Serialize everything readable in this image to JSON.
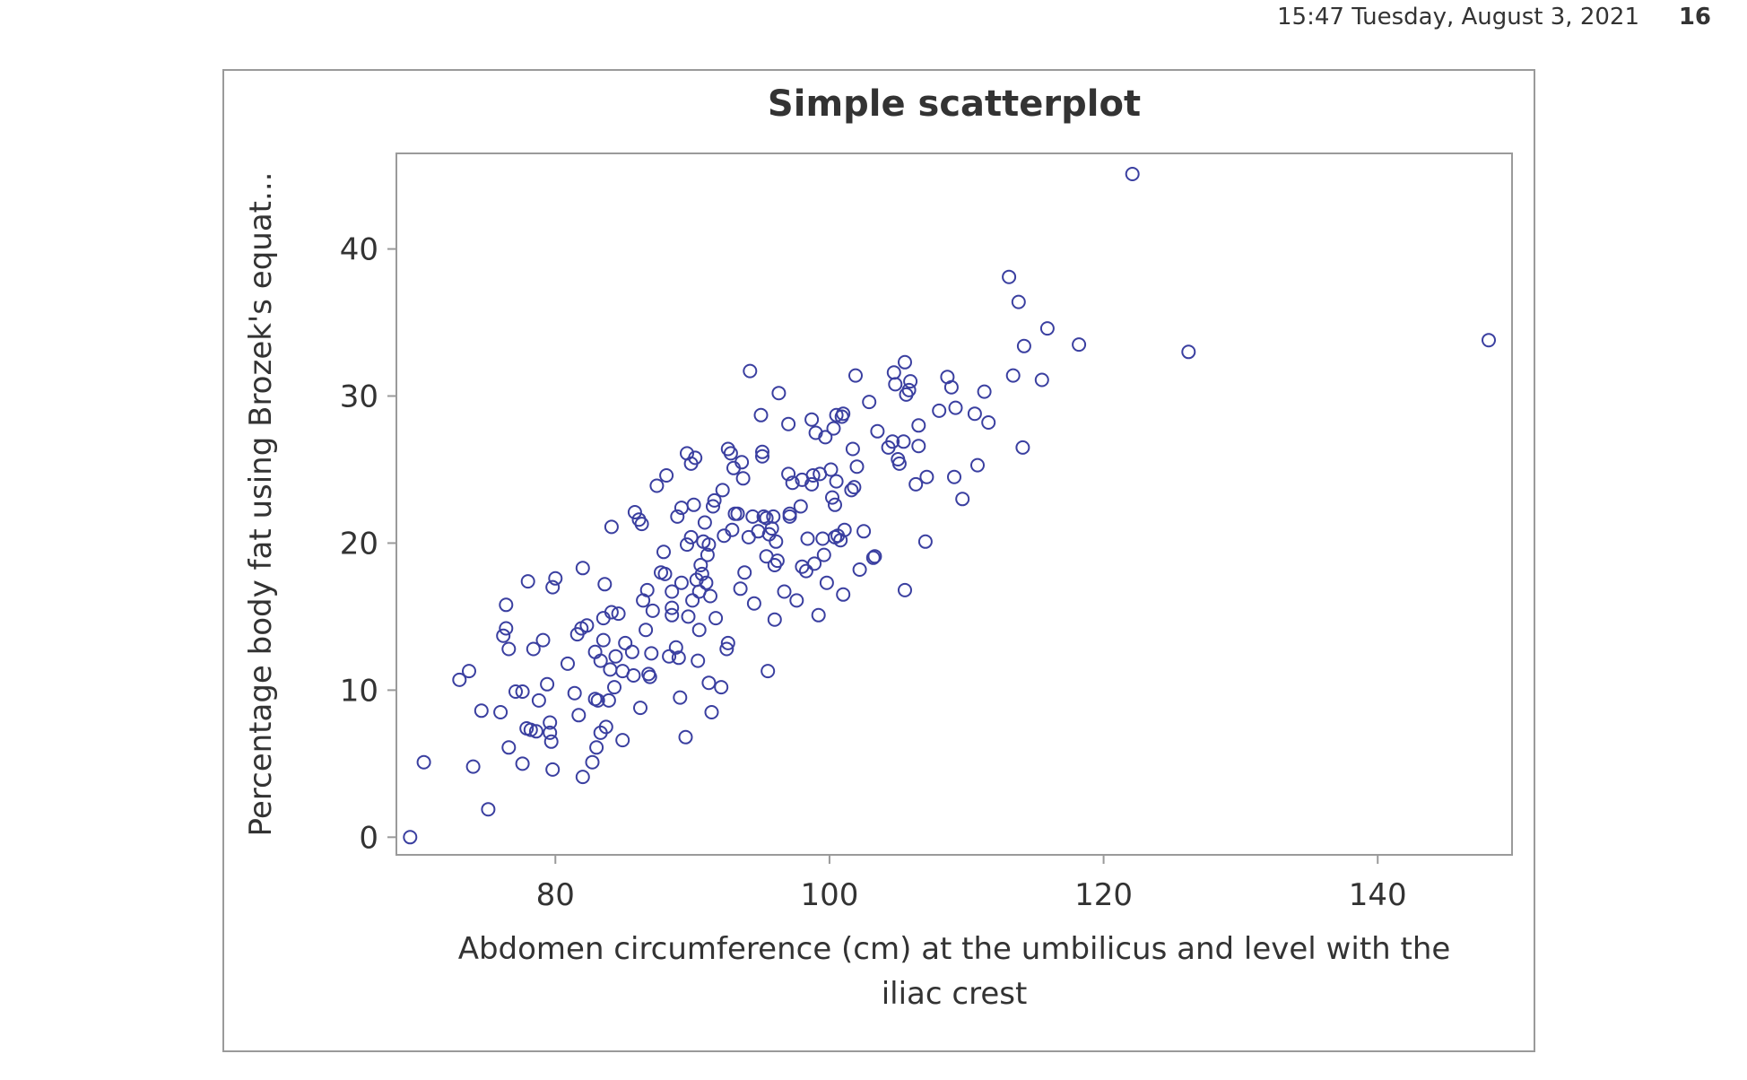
{
  "header": {
    "timestamp": "15:47 Tuesday, August 3, 2021",
    "page_number": "16"
  },
  "colors": {
    "marker": "#3a3fa0",
    "axis": "#9a9a9a",
    "text": "#333333"
  },
  "chart_data": {
    "type": "scatter",
    "title": "Simple scatterplot",
    "xlabel_lines": [
      "Abdomen circumference (cm) at the umbilicus and level with the",
      "iliac crest"
    ],
    "ylabel": "Percentage body fat using Brozek's equat...",
    "xlim": [
      68.4,
      149.8
    ],
    "ylim": [
      -1.2,
      46.5
    ],
    "xticks": [
      80,
      100,
      120,
      140
    ],
    "yticks": [
      0,
      10,
      20,
      30,
      40
    ],
    "grid": false,
    "marker": "open-circle",
    "points": [
      [
        69.4,
        0.0
      ],
      [
        70.4,
        5.1
      ],
      [
        73.0,
        10.7
      ],
      [
        73.7,
        11.3
      ],
      [
        74.0,
        4.8
      ],
      [
        74.6,
        8.6
      ],
      [
        75.1,
        1.9
      ],
      [
        76.0,
        8.5
      ],
      [
        76.2,
        13.7
      ],
      [
        76.4,
        14.2
      ],
      [
        76.4,
        15.8
      ],
      [
        76.6,
        12.8
      ],
      [
        76.6,
        6.1
      ],
      [
        77.1,
        9.9
      ],
      [
        77.6,
        9.9
      ],
      [
        77.6,
        5.0
      ],
      [
        77.9,
        7.4
      ],
      [
        78.0,
        17.4
      ],
      [
        78.2,
        7.3
      ],
      [
        78.4,
        12.8
      ],
      [
        78.6,
        7.2
      ],
      [
        78.8,
        9.3
      ],
      [
        79.1,
        13.4
      ],
      [
        79.4,
        10.4
      ],
      [
        79.6,
        7.8
      ],
      [
        79.6,
        7.1
      ],
      [
        79.7,
        6.5
      ],
      [
        79.8,
        4.6
      ],
      [
        79.8,
        17.0
      ],
      [
        80.0,
        17.6
      ],
      [
        80.9,
        11.8
      ],
      [
        81.4,
        9.8
      ],
      [
        81.6,
        13.8
      ],
      [
        81.7,
        8.3
      ],
      [
        81.9,
        14.2
      ],
      [
        82.0,
        4.1
      ],
      [
        82.0,
        18.3
      ],
      [
        82.3,
        14.4
      ],
      [
        82.7,
        5.1
      ],
      [
        82.9,
        9.4
      ],
      [
        82.9,
        12.6
      ],
      [
        83.0,
        6.1
      ],
      [
        83.1,
        9.3
      ],
      [
        83.3,
        7.1
      ],
      [
        83.3,
        12.0
      ],
      [
        83.5,
        14.9
      ],
      [
        83.5,
        13.4
      ],
      [
        83.6,
        17.2
      ],
      [
        83.7,
        7.5
      ],
      [
        83.9,
        9.3
      ],
      [
        84.0,
        11.4
      ],
      [
        84.1,
        15.3
      ],
      [
        84.1,
        21.1
      ],
      [
        84.3,
        10.2
      ],
      [
        84.4,
        12.3
      ],
      [
        84.6,
        15.2
      ],
      [
        84.9,
        6.6
      ],
      [
        84.9,
        11.3
      ],
      [
        85.1,
        13.2
      ],
      [
        85.6,
        12.6
      ],
      [
        85.7,
        11.0
      ],
      [
        85.8,
        22.1
      ],
      [
        86.1,
        21.6
      ],
      [
        86.2,
        8.8
      ],
      [
        86.3,
        21.3
      ],
      [
        86.4,
        16.1
      ],
      [
        86.6,
        14.1
      ],
      [
        86.7,
        16.8
      ],
      [
        86.8,
        11.1
      ],
      [
        86.9,
        10.9
      ],
      [
        87.0,
        12.5
      ],
      [
        87.1,
        15.4
      ],
      [
        87.4,
        23.9
      ],
      [
        87.7,
        18.0
      ],
      [
        87.9,
        19.4
      ],
      [
        88.0,
        17.9
      ],
      [
        88.1,
        24.6
      ],
      [
        88.3,
        12.3
      ],
      [
        88.5,
        15.6
      ],
      [
        88.5,
        16.7
      ],
      [
        88.5,
        15.1
      ],
      [
        88.8,
        12.9
      ],
      [
        88.9,
        21.8
      ],
      [
        89.0,
        12.2
      ],
      [
        89.1,
        9.5
      ],
      [
        89.2,
        22.4
      ],
      [
        89.2,
        17.3
      ],
      [
        89.5,
        6.8
      ],
      [
        89.6,
        19.9
      ],
      [
        89.6,
        26.1
      ],
      [
        89.7,
        15.0
      ],
      [
        89.9,
        25.4
      ],
      [
        89.9,
        20.4
      ],
      [
        90.0,
        16.1
      ],
      [
        90.1,
        22.6
      ],
      [
        90.2,
        25.8
      ],
      [
        90.3,
        17.5
      ],
      [
        90.4,
        12.0
      ],
      [
        90.5,
        14.1
      ],
      [
        90.5,
        16.7
      ],
      [
        90.6,
        18.5
      ],
      [
        90.7,
        17.9
      ],
      [
        90.8,
        20.1
      ],
      [
        90.9,
        21.4
      ],
      [
        91.0,
        17.3
      ],
      [
        91.1,
        19.2
      ],
      [
        91.2,
        19.9
      ],
      [
        91.2,
        10.5
      ],
      [
        91.3,
        16.4
      ],
      [
        91.4,
        8.5
      ],
      [
        91.5,
        22.5
      ],
      [
        91.6,
        22.9
      ],
      [
        91.7,
        14.9
      ],
      [
        92.1,
        10.2
      ],
      [
        92.2,
        23.6
      ],
      [
        92.3,
        20.5
      ],
      [
        92.5,
        12.8
      ],
      [
        92.6,
        13.2
      ],
      [
        92.6,
        26.4
      ],
      [
        92.8,
        26.1
      ],
      [
        92.9,
        20.9
      ],
      [
        93.0,
        25.1
      ],
      [
        93.1,
        22.0
      ],
      [
        93.3,
        22.0
      ],
      [
        93.5,
        16.9
      ],
      [
        93.6,
        25.5
      ],
      [
        93.7,
        24.4
      ],
      [
        93.8,
        18.0
      ],
      [
        94.1,
        20.4
      ],
      [
        94.2,
        31.7
      ],
      [
        94.4,
        21.8
      ],
      [
        94.5,
        15.9
      ],
      [
        94.8,
        20.8
      ],
      [
        95.0,
        28.7
      ],
      [
        95.1,
        26.2
      ],
      [
        95.1,
        25.9
      ],
      [
        95.2,
        21.8
      ],
      [
        95.4,
        19.1
      ],
      [
        95.4,
        21.7
      ],
      [
        95.5,
        11.3
      ],
      [
        95.6,
        20.6
      ],
      [
        95.8,
        21.0
      ],
      [
        95.9,
        21.8
      ],
      [
        96.0,
        18.5
      ],
      [
        96.0,
        14.8
      ],
      [
        96.1,
        20.1
      ],
      [
        96.2,
        18.8
      ],
      [
        96.3,
        30.2
      ],
      [
        96.7,
        16.7
      ],
      [
        97.0,
        28.1
      ],
      [
        97.0,
        24.7
      ],
      [
        97.1,
        22.0
      ],
      [
        97.1,
        21.8
      ],
      [
        97.3,
        24.1
      ],
      [
        97.6,
        16.1
      ],
      [
        97.9,
        22.5
      ],
      [
        98.0,
        24.3
      ],
      [
        98.0,
        18.4
      ],
      [
        98.3,
        18.1
      ],
      [
        98.4,
        20.3
      ],
      [
        98.7,
        24.0
      ],
      [
        98.7,
        28.4
      ],
      [
        98.8,
        24.6
      ],
      [
        98.9,
        18.6
      ],
      [
        99.0,
        27.5
      ],
      [
        99.2,
        15.1
      ],
      [
        99.3,
        24.7
      ],
      [
        99.5,
        20.3
      ],
      [
        99.6,
        19.2
      ],
      [
        99.7,
        27.2
      ],
      [
        99.8,
        17.3
      ],
      [
        100.1,
        25.0
      ],
      [
        100.2,
        23.1
      ],
      [
        100.3,
        27.8
      ],
      [
        100.4,
        20.4
      ],
      [
        100.4,
        22.6
      ],
      [
        100.5,
        24.2
      ],
      [
        100.5,
        28.7
      ],
      [
        100.6,
        20.5
      ],
      [
        100.8,
        20.2
      ],
      [
        100.9,
        28.6
      ],
      [
        101.0,
        28.8
      ],
      [
        101.0,
        16.5
      ],
      [
        101.1,
        20.9
      ],
      [
        101.6,
        23.6
      ],
      [
        101.7,
        26.4
      ],
      [
        101.8,
        23.8
      ],
      [
        101.9,
        31.4
      ],
      [
        102.0,
        25.2
      ],
      [
        102.2,
        18.2
      ],
      [
        102.5,
        20.8
      ],
      [
        102.9,
        29.6
      ],
      [
        103.2,
        19.0
      ],
      [
        103.3,
        19.1
      ],
      [
        103.5,
        27.6
      ],
      [
        104.3,
        26.5
      ],
      [
        104.6,
        26.9
      ],
      [
        104.7,
        31.6
      ],
      [
        104.8,
        30.8
      ],
      [
        105.0,
        25.7
      ],
      [
        105.1,
        25.4
      ],
      [
        105.5,
        16.8
      ],
      [
        105.4,
        26.9
      ],
      [
        105.5,
        32.3
      ],
      [
        105.6,
        30.1
      ],
      [
        105.8,
        30.4
      ],
      [
        105.9,
        31.0
      ],
      [
        106.3,
        24.0
      ],
      [
        106.5,
        28.0
      ],
      [
        106.5,
        26.6
      ],
      [
        107.0,
        20.1
      ],
      [
        107.1,
        24.5
      ],
      [
        108.0,
        29.0
      ],
      [
        108.6,
        31.3
      ],
      [
        108.9,
        30.6
      ],
      [
        109.1,
        24.5
      ],
      [
        109.2,
        29.2
      ],
      [
        109.7,
        23.0
      ],
      [
        110.6,
        28.8
      ],
      [
        110.8,
        25.3
      ],
      [
        111.3,
        30.3
      ],
      [
        111.6,
        28.2
      ],
      [
        113.1,
        38.1
      ],
      [
        113.4,
        31.4
      ],
      [
        113.8,
        36.4
      ],
      [
        114.1,
        26.5
      ],
      [
        114.2,
        33.4
      ],
      [
        115.5,
        31.1
      ],
      [
        115.9,
        34.6
      ],
      [
        118.2,
        33.5
      ],
      [
        122.1,
        45.1
      ],
      [
        126.2,
        33.0
      ],
      [
        148.1,
        33.8
      ]
    ]
  }
}
